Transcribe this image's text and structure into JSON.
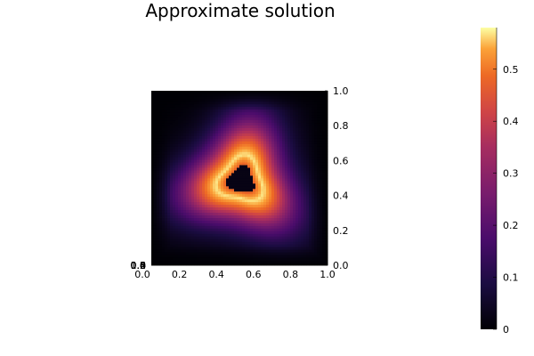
{
  "chart_data": {
    "type": "heatmap",
    "title": "Approximate solution",
    "x_ticks": [
      "0.0",
      "0.2",
      "0.4",
      "0.6",
      "0.8",
      "1.0"
    ],
    "y_ticks": [
      "0.0",
      "0.2",
      "0.4",
      "0.6",
      "0.8",
      "1.0"
    ],
    "xlim": [
      0,
      1
    ],
    "ylim": [
      0,
      1
    ],
    "overlapping_corner_labels": [
      "0.0",
      "0.2",
      "0.4",
      "0.6",
      "0.8",
      "1.0"
    ],
    "colorbar": {
      "range": [
        0,
        0.58
      ],
      "ticks": [
        "0",
        "0.1",
        "0.2",
        "0.3",
        "0.4",
        "0.5"
      ],
      "colormap": "inferno"
    },
    "field": {
      "description": "ring-shaped field: ~0 at center (0.5,0.5) and near boundary, peak ~0.56 on ring around radius 0.12",
      "center": [
        0.51,
        0.49
      ],
      "peak_value": 0.56,
      "ring_radius": 0.12
    },
    "grid": false,
    "legend": "none"
  }
}
